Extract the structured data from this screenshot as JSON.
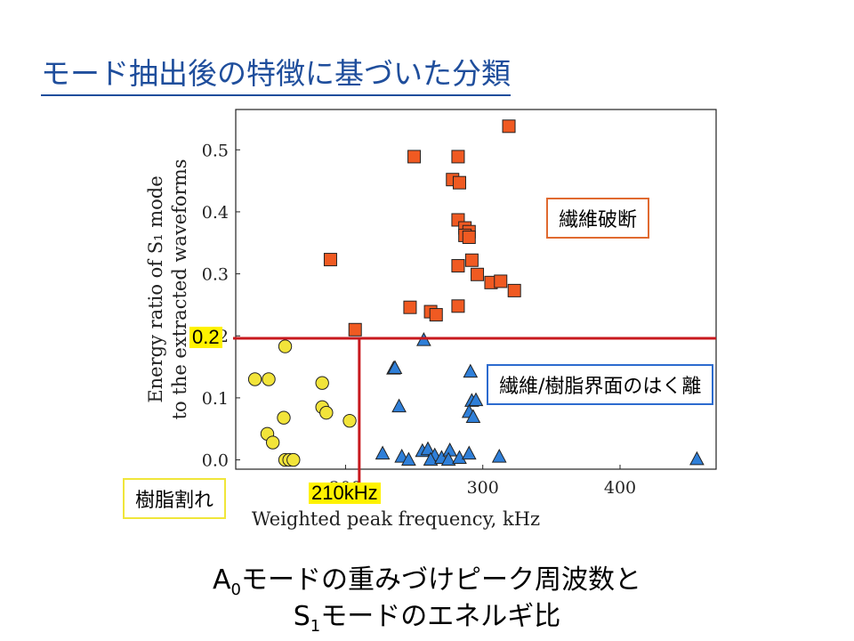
{
  "title": "モード抽出後の特徴に基づいた分類",
  "labels": {
    "fiber_break": "繊維破断",
    "interface_debond": "繊維/樹脂界面のはく離",
    "resin_crack": "樹脂割れ",
    "threshold_y": "0.2",
    "threshold_x": "210kHz"
  },
  "caption": {
    "line1_pre": "A",
    "line1_sub": "0",
    "line1_post": "モードの重みづけピーク周波数と",
    "line2_pre": "S",
    "line2_sub": "1",
    "line2_post": "モードのエネルギ比"
  },
  "colors": {
    "title": "#1f4e9c",
    "fiber": "#f05a22",
    "interface": "#2f7fd8",
    "resin": "#f2e43a",
    "threshold": "#c8191e"
  },
  "chart_data": {
    "type": "scatter",
    "xlabel": "Weighted peak frequency, kHz",
    "ylabel_line1": "Energy ratio of S₁ mode",
    "ylabel_line2": "to the extracted waveforms",
    "xlim": [
      120,
      470
    ],
    "ylim": [
      -0.015,
      0.565
    ],
    "xticks": [
      {
        "v": 200,
        "label": "200"
      },
      {
        "v": 300,
        "label": "300"
      },
      {
        "v": 400,
        "label": "400"
      }
    ],
    "yticks": [
      {
        "v": 0.0,
        "label": "0.0"
      },
      {
        "v": 0.1,
        "label": "0.1"
      },
      {
        "v": 0.2,
        "label": "0.2"
      },
      {
        "v": 0.3,
        "label": "0.3"
      },
      {
        "v": 0.4,
        "label": "0.4"
      },
      {
        "v": 0.5,
        "label": "0.5"
      }
    ],
    "thresholds": {
      "y": 0.196,
      "x": 210
    },
    "series": [
      {
        "marker": "square",
        "color": "#f05a22",
        "x": [
          319,
          250,
          282,
          278,
          283,
          189,
          282,
          287,
          290,
          287,
          290,
          292,
          282,
          296,
          306,
          313,
          323,
          247,
          262,
          266,
          282,
          207
        ],
        "y": [
          0.538,
          0.489,
          0.489,
          0.452,
          0.447,
          0.323,
          0.387,
          0.374,
          0.368,
          0.362,
          0.359,
          0.322,
          0.313,
          0.299,
          0.286,
          0.288,
          0.273,
          0.246,
          0.239,
          0.234,
          0.248,
          0.21
        ]
      },
      {
        "marker": "triangle",
        "color": "#2f7fd8",
        "x": [
          257,
          235,
          236,
          291,
          239,
          292,
          295,
          290,
          293,
          227,
          241,
          246,
          256,
          260,
          265,
          262,
          270,
          276,
          275,
          283,
          290,
          312,
          456
        ],
        "y": [
          0.193,
          0.147,
          0.148,
          0.142,
          0.086,
          0.095,
          0.096,
          0.077,
          0.069,
          0.01,
          0.005,
          0.0,
          0.014,
          0.017,
          0.007,
          0.0,
          0.003,
          0.015,
          0.0,
          0.003,
          0.01,
          0.005,
          0.001
        ]
      },
      {
        "marker": "circle",
        "color": "#f2e43a",
        "x": [
          156,
          134,
          144,
          183,
          155,
          183,
          186,
          203,
          143,
          147,
          156,
          159,
          162
        ],
        "y": [
          0.183,
          0.13,
          0.13,
          0.124,
          0.068,
          0.085,
          0.076,
          0.063,
          0.042,
          0.028,
          0.0,
          0.0,
          0.0
        ]
      }
    ]
  }
}
